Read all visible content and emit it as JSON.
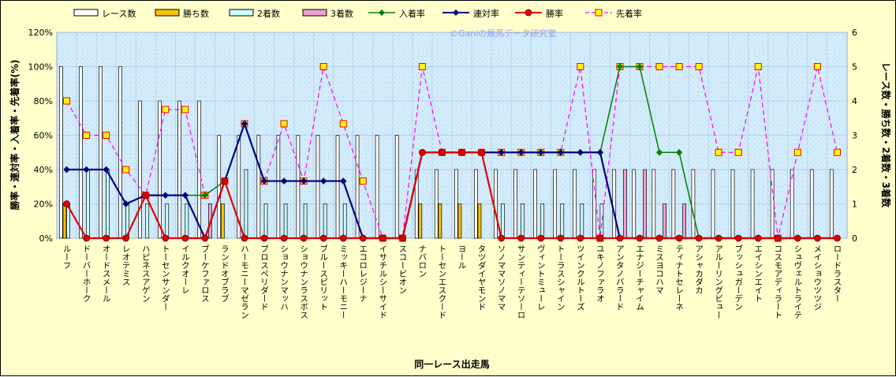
{
  "chart_data": {
    "type": "bar-line combo",
    "watermark": "©Ganiの競馬データ研究室",
    "xlabel": "同一レース出走馬",
    "ylabel_left": "勝率・連対率・入着率・先着率(%)",
    "ylabel_right": "レース数・勝ち数・2着数・3着数",
    "left_axis": {
      "min": 0,
      "max": 120,
      "ticks": [
        "0%",
        "20%",
        "40%",
        "60%",
        "80%",
        "100%",
        "120%"
      ]
    },
    "right_axis": {
      "min": 0,
      "max": 6,
      "ticks": [
        "0",
        "1",
        "2",
        "3",
        "4",
        "5",
        "6"
      ]
    },
    "legend_position": "top",
    "grid": true,
    "categories": [
      "ルーフ",
      "ドーバーホーク",
      "オードスメール",
      "レオテミス",
      "ハピネスアゲン",
      "トーセンサンダー",
      "イルクオーレ",
      "ブーケファロス",
      "ランドオブラブ",
      "ハーモニーマゼラン",
      "プロスペリダード",
      "ショウナンマッハ",
      "ショウナンラスボス",
      "ブルースピリット",
      "ミッキーハーモニー",
      "エコロレジーナ",
      "イサチルシーサイド",
      "スコービオン",
      "ナバロン",
      "トーセンエスクード",
      "ヨール",
      "タツダイヤモンド",
      "ソノママソノママ",
      "サンティーテソーロ",
      "ヴィントミューレ",
      "トーラスシャイン",
      "ツインクルトーズ",
      "ユキノファラオ",
      "アンタノバラード",
      "エナジーチャイム",
      "ミスヨコハマ",
      "ティナトセレーネ",
      "アシャカダカ",
      "アルーリングビュー",
      "ブッシュガーデン",
      "エイシンエイト",
      "コスモアディラート",
      "シュヴェルトライテ",
      "メイショウツツジ",
      "ロードラスター"
    ],
    "series": [
      {
        "name": "レース数",
        "kind": "bar",
        "axis": "right",
        "color": "#ffffff",
        "values": [
          5,
          5,
          5,
          5,
          4,
          4,
          4,
          4,
          3,
          3,
          3,
          3,
          3,
          3,
          3,
          3,
          3,
          3,
          2,
          2,
          2,
          2,
          2,
          2,
          2,
          2,
          2,
          2,
          2,
          2,
          2,
          2,
          2,
          2,
          2,
          2,
          2,
          2,
          2,
          2
        ]
      },
      {
        "name": "勝ち数",
        "kind": "bar",
        "axis": "right",
        "color": "#f5c400",
        "values": [
          1,
          0,
          0,
          0,
          0,
          0,
          0,
          0,
          1,
          0,
          0,
          0,
          0,
          0,
          0,
          0,
          0,
          0,
          1,
          1,
          1,
          1,
          0,
          0,
          0,
          0,
          0,
          0,
          0,
          0,
          0,
          0,
          0,
          0,
          0,
          0,
          0,
          0,
          0,
          0
        ]
      },
      {
        "name": "2着数",
        "kind": "bar",
        "axis": "right",
        "color": "#ccffff",
        "values": [
          1,
          2,
          2,
          1,
          1,
          1,
          1,
          0,
          0,
          2,
          1,
          1,
          1,
          1,
          1,
          0,
          0,
          0,
          0,
          0,
          0,
          0,
          1,
          1,
          1,
          1,
          1,
          1,
          0,
          0,
          0,
          0,
          0,
          0,
          0,
          0,
          0,
          0,
          0,
          0
        ]
      },
      {
        "name": "3着数",
        "kind": "bar",
        "axis": "right",
        "color": "#f0a0d0",
        "values": [
          0,
          0,
          0,
          0,
          0,
          0,
          0,
          1,
          0,
          0,
          0,
          0,
          0,
          0,
          0,
          0,
          0,
          0,
          0,
          0,
          0,
          0,
          0,
          0,
          0,
          0,
          0,
          0,
          2,
          2,
          1,
          1,
          0,
          0,
          0,
          0,
          0,
          0,
          0,
          0
        ]
      },
      {
        "name": "入着率",
        "kind": "line",
        "axis": "left",
        "color": "#008000",
        "marker": "diamond",
        "values": [
          40,
          40,
          40,
          20,
          25,
          25,
          25,
          25,
          33.3,
          66.7,
          33.3,
          33.3,
          33.3,
          33.3,
          33.3,
          0,
          0,
          0,
          50,
          50,
          50,
          50,
          50,
          50,
          50,
          50,
          50,
          50,
          100,
          100,
          50,
          50,
          0,
          0,
          0,
          0,
          0,
          0,
          0,
          0
        ]
      },
      {
        "name": "連対率",
        "kind": "line",
        "axis": "left",
        "color": "#000080",
        "marker": "diamond",
        "values": [
          40,
          40,
          40,
          20,
          25,
          25,
          25,
          0,
          33.3,
          66.7,
          33.3,
          33.3,
          33.3,
          33.3,
          33.3,
          0,
          0,
          0,
          50,
          50,
          50,
          50,
          50,
          50,
          50,
          50,
          50,
          50,
          0,
          0,
          0,
          0,
          0,
          0,
          0,
          0,
          0,
          0,
          0,
          0
        ]
      },
      {
        "name": "勝率",
        "kind": "line",
        "axis": "left",
        "color": "#e00000",
        "marker": "circle",
        "values": [
          20,
          0,
          0,
          0,
          25,
          0,
          0,
          0,
          33.3,
          0,
          0,
          0,
          0,
          0,
          0,
          0,
          0,
          0,
          50,
          50,
          50,
          50,
          0,
          0,
          0,
          0,
          0,
          0,
          0,
          0,
          0,
          0,
          0,
          0,
          0,
          0,
          0,
          0,
          0,
          0
        ]
      },
      {
        "name": "先着率",
        "kind": "line",
        "axis": "left",
        "color": "#ff00ff",
        "marker": "square",
        "dashed": true,
        "values": [
          80,
          60,
          60,
          40,
          25,
          75,
          75,
          25,
          33.3,
          66.7,
          33.3,
          66.7,
          33.3,
          100,
          66.7,
          33.3,
          0,
          0,
          100,
          50,
          50,
          50,
          50,
          50,
          50,
          50,
          100,
          0,
          100,
          100,
          100,
          100,
          100,
          50,
          50,
          100,
          0,
          50,
          100,
          50
        ]
      }
    ]
  }
}
